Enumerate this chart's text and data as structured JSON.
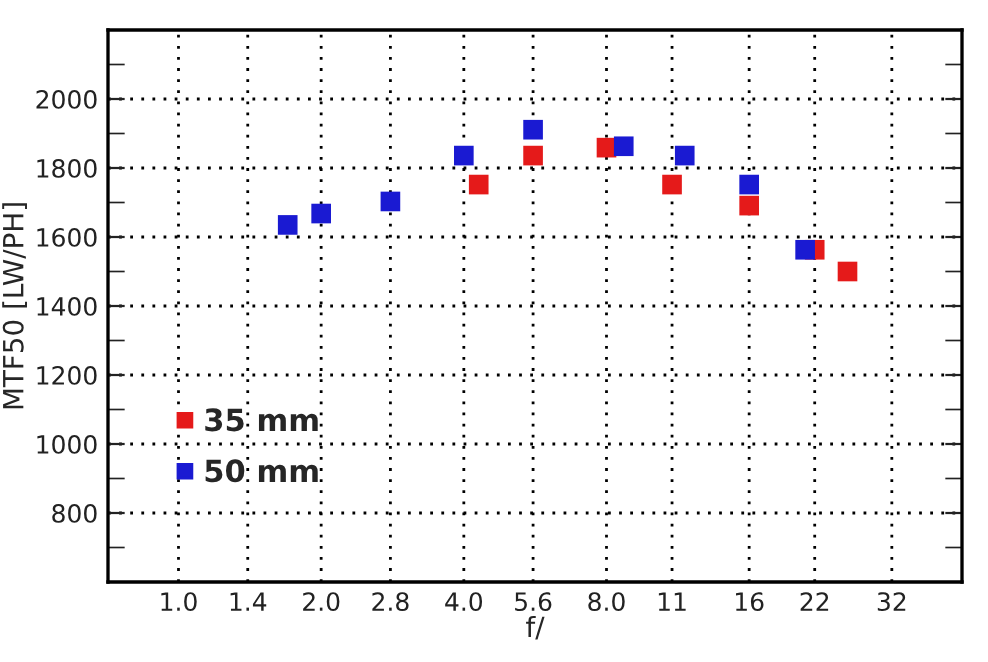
{
  "chart_data": {
    "type": "scatter",
    "xlabel": "f/",
    "ylabel": "MTF50 [LW/PH]",
    "log": "x",
    "marker": "square",
    "grid": true,
    "legend": "bottom left",
    "xlim": [
      0.71,
      45
    ],
    "ylim": [
      600,
      2200
    ],
    "xticks": [
      {
        "value": 1.0,
        "label": "1.0"
      },
      1.4,
      {
        "value": 2.0,
        "label": "2.0"
      },
      2.8,
      {
        "value": 4.0,
        "label": "4.0"
      },
      5.6,
      {
        "value": 8.0,
        "label": "8.0"
      },
      11,
      16,
      22,
      32
    ],
    "yticks": [
      {
        "value": 700,
        "label": null
      },
      800,
      {
        "value": 900,
        "label": null
      },
      1000,
      {
        "value": 1100,
        "label": null
      },
      1200,
      {
        "value": 1300,
        "label": null
      },
      1400,
      {
        "value": 1500,
        "label": null
      },
      1600,
      {
        "value": 1700,
        "label": null
      },
      1800,
      {
        "value": 1900,
        "label": null
      },
      2000,
      {
        "value": 2100,
        "label": null
      }
    ],
    "series": [
      {
        "name": "35 mm",
        "color": "#e51a1a",
        "x": [
          4.3,
          5.6,
          8.0,
          11,
          16,
          22,
          25.8
        ],
        "values": [
          1752,
          1836,
          1859,
          1752,
          1691,
          1563,
          1500
        ]
      },
      {
        "name": "50 mm",
        "color": "#1a1ad2",
        "x": [
          1.7,
          2.0,
          2.8,
          4.0,
          5.6,
          8.7,
          11.7,
          16,
          21
        ],
        "values": [
          1635,
          1668,
          1703,
          1836,
          1911,
          1863,
          1836,
          1752,
          1563
        ]
      }
    ]
  }
}
